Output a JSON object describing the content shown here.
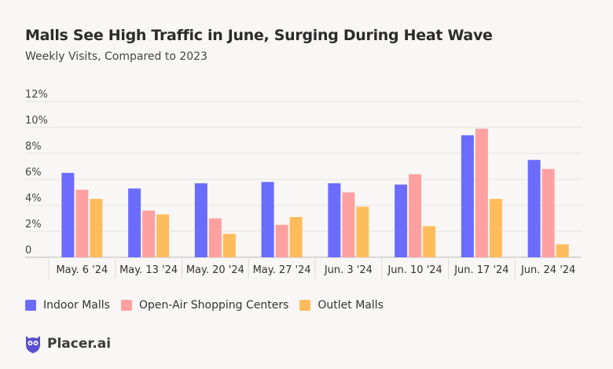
{
  "chart_data": {
    "type": "bar",
    "title": "Malls See High Traffic in June, Surging During Heat Wave",
    "subtitle": "Weekly Visits, Compared to 2023",
    "categories": [
      "May. 6 '24",
      "May. 13 '24",
      "May. 20 '24",
      "May. 27 '24",
      "Jun. 3 '24",
      "Jun. 10 '24",
      "Jun. 17 '24",
      "Jun. 24 '24"
    ],
    "series": [
      {
        "name": "Indoor Malls",
        "color": "#6b6cfd",
        "values": [
          6.5,
          5.3,
          5.7,
          5.8,
          5.7,
          5.6,
          9.4,
          7.5
        ]
      },
      {
        "name": "Open-Air Shopping Centers",
        "color": "#ffa0a0",
        "values": [
          5.2,
          3.6,
          3.0,
          2.5,
          5.0,
          6.4,
          9.9,
          6.8
        ]
      },
      {
        "name": "Outlet Malls",
        "color": "#ffbc5c",
        "values": [
          4.5,
          3.3,
          1.8,
          3.1,
          3.9,
          2.4,
          4.5,
          1.0
        ]
      }
    ],
    "yticks": [
      "0",
      "2%",
      "4%",
      "6%",
      "8%",
      "10%",
      "12%"
    ],
    "ylim": [
      0,
      12
    ],
    "grid": true,
    "legend": "bottom-left"
  },
  "brand": {
    "name": "Placer.ai",
    "color": "#5a4fcf"
  }
}
